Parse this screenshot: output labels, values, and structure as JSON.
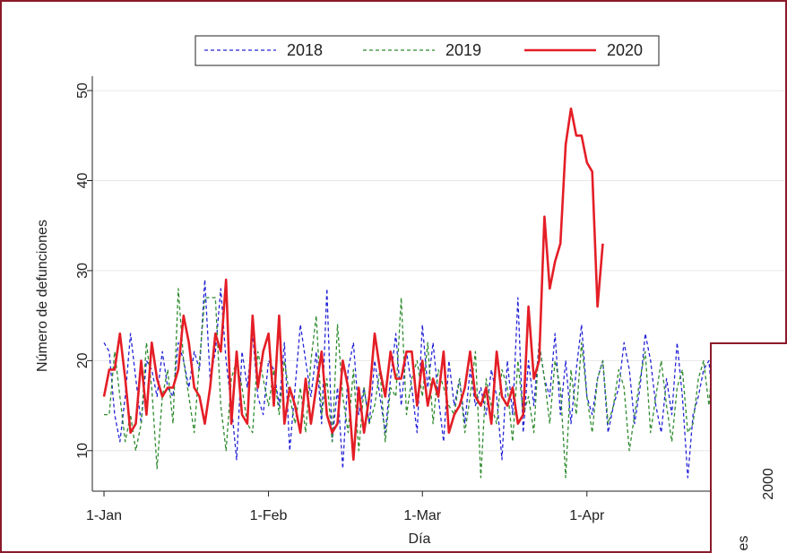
{
  "chart_data": {
    "type": "line",
    "x_label": "Día",
    "y_label": "Número de defunciones",
    "x": [
      0,
      1,
      2,
      3,
      4,
      5,
      6,
      7,
      8,
      9,
      10,
      11,
      12,
      13,
      14,
      15,
      16,
      17,
      18,
      19,
      20,
      21,
      22,
      23,
      24,
      25,
      26,
      27,
      28,
      29,
      30,
      31,
      32,
      33,
      34,
      35,
      36,
      37,
      38,
      39,
      40,
      41,
      42,
      43,
      44,
      45,
      46,
      47,
      48,
      49,
      50,
      51,
      52,
      53,
      54,
      55,
      56,
      57,
      58,
      59,
      60,
      61,
      62,
      63,
      64,
      65,
      66,
      67,
      68,
      69,
      70,
      71,
      72,
      73,
      74,
      75,
      76,
      77,
      78,
      79,
      80,
      81,
      82,
      83,
      84,
      85,
      86,
      87,
      88,
      89,
      90,
      91,
      92,
      93,
      94,
      95,
      96,
      97,
      98,
      99,
      100,
      101,
      102,
      103,
      104,
      105,
      106,
      107,
      108,
      109,
      110,
      111,
      112,
      113,
      114,
      115,
      116
    ],
    "series": [
      {
        "name": "2018",
        "color": "#2424d6",
        "dash": "dashed",
        "values": [
          22,
          21,
          14,
          11,
          16,
          23,
          18,
          13,
          20,
          19,
          16,
          21,
          17,
          16,
          22,
          20,
          17,
          21,
          19,
          29,
          18,
          21,
          28,
          20,
          15,
          9,
          21,
          17,
          23,
          16,
          14,
          20,
          19,
          15,
          22,
          10,
          17,
          24,
          20,
          16,
          21,
          13,
          28,
          11,
          17,
          8,
          19,
          22,
          14,
          17,
          13,
          20,
          16,
          12,
          18,
          23,
          15,
          21,
          17,
          12,
          24,
          17,
          22,
          16,
          11,
          20,
          15,
          18,
          13,
          19,
          15,
          17,
          14,
          19,
          16,
          9,
          20,
          14,
          27,
          12,
          20,
          15,
          22,
          18,
          16,
          23,
          14,
          20,
          13,
          19,
          24,
          16,
          14,
          18,
          20,
          12,
          15,
          17,
          22,
          19,
          13,
          17,
          23,
          20,
          15,
          12,
          18,
          14,
          22,
          16,
          7,
          14,
          16,
          19,
          20,
          13,
          10
        ]
      },
      {
        "name": "2019",
        "color": "#2e8b2e",
        "dash": "dashed",
        "values": [
          14,
          14,
          21,
          16,
          11,
          14,
          10,
          13,
          22,
          17,
          8,
          16,
          19,
          13,
          28,
          20,
          16,
          12,
          20,
          27,
          27,
          27,
          15,
          10,
          18,
          20,
          17,
          13,
          12,
          21,
          18,
          15,
          19,
          14,
          20,
          16,
          13,
          17,
          12,
          20,
          25,
          14,
          18,
          11,
          24,
          16,
          12,
          19,
          10,
          17,
          13,
          15,
          19,
          11,
          17,
          16,
          27,
          14,
          18,
          20,
          16,
          22,
          13,
          19,
          17,
          15,
          14,
          18,
          12,
          16,
          21,
          7,
          18,
          15,
          13,
          19,
          17,
          11,
          20,
          14,
          16,
          12,
          22,
          18,
          13,
          20,
          17,
          7,
          19,
          14,
          22,
          16,
          12,
          18,
          20,
          13,
          15,
          19,
          17,
          10,
          14,
          18,
          21,
          12,
          16,
          20,
          15,
          11,
          17,
          19,
          12,
          13,
          18,
          20,
          15,
          22,
          17
        ]
      },
      {
        "name": "2020",
        "color": "#e41e26",
        "dash": "solid",
        "values": [
          16,
          19,
          19,
          23,
          18,
          12,
          13,
          20,
          14,
          22,
          18,
          16,
          17,
          17,
          19,
          25,
          22,
          17,
          16,
          13,
          17,
          23,
          21,
          29,
          13,
          21,
          14,
          13,
          25,
          17,
          21,
          23,
          15,
          25,
          13,
          17,
          15,
          12,
          18,
          13,
          17,
          21,
          14,
          12,
          13,
          20,
          17,
          9,
          17,
          12,
          16,
          23,
          19,
          16,
          21,
          18,
          18,
          21,
          21,
          15,
          20,
          15,
          18,
          16,
          21,
          12,
          14,
          15,
          17,
          21,
          16,
          15,
          17,
          13,
          21,
          16,
          15,
          17,
          13,
          14,
          26,
          18,
          20,
          36,
          28,
          31,
          33,
          44,
          48,
          45,
          45,
          42,
          41,
          26,
          33,
          null,
          null,
          null,
          null,
          null,
          null,
          null,
          null,
          null,
          null,
          null,
          null,
          null,
          null,
          null,
          null,
          null,
          null,
          null,
          null,
          null,
          null
        ]
      }
    ],
    "xlim": [
      -2.2,
      128.2
    ],
    "xticks": [
      {
        "value": 0,
        "label": "1-Jan"
      },
      {
        "value": 31,
        "label": "1-Feb"
      },
      {
        "value": 60,
        "label": "1-Mar"
      },
      {
        "value": 91,
        "label": "1-Apr"
      }
    ],
    "ylim": [
      5.5,
      51.6
    ],
    "yticks": [
      10,
      20,
      30,
      40,
      50
    ],
    "grid": true,
    "legend": "top"
  },
  "overlay": {
    "texts": [
      "2000",
      "es"
    ]
  }
}
